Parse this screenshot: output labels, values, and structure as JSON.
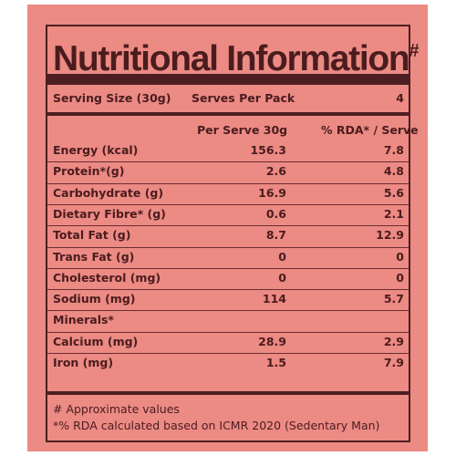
{
  "title": "Nutritional Information",
  "title_mark": "#",
  "serving": {
    "size_label": "Serving Size (30g)",
    "per_pack_label": "Serves Per Pack",
    "per_pack_value": "4"
  },
  "headers": {
    "per_serve": "Per Serve 30g",
    "rda": "% RDA* / Serve"
  },
  "rows": [
    {
      "label": "Energy (kcal)",
      "per_serve": "156.3",
      "rda": "7.8"
    },
    {
      "label": "Protein*(g)",
      "per_serve": "2.6",
      "rda": "4.8"
    },
    {
      "label": "Carbohydrate (g)",
      "per_serve": "16.9",
      "rda": "5.6"
    },
    {
      "label": "Dietary Fibre* (g)",
      "per_serve": "0.6",
      "rda": "2.1"
    },
    {
      "label": "Total Fat (g)",
      "per_serve": "8.7",
      "rda": "12.9"
    },
    {
      "label": "Trans Fat (g)",
      "per_serve": "0",
      "rda": "0"
    },
    {
      "label": "Cholesterol (mg)",
      "per_serve": "0",
      "rda": "0"
    },
    {
      "label": "Sodium (mg)",
      "per_serve": "114",
      "rda": "5.7"
    },
    {
      "label": "Minerals*",
      "per_serve": "",
      "rda": ""
    },
    {
      "label": "Calcium (mg)",
      "per_serve": "28.9",
      "rda": "2.9"
    },
    {
      "label": "Iron (mg)",
      "per_serve": "1.5",
      "rda": "7.9"
    }
  ],
  "footnotes": [
    "# Approximate values",
    "*% RDA calculated based on ICMR 2020 (Sedentary Man)"
  ],
  "colors": {
    "panel": "#ec8a84",
    "ink": "#4a1c1e"
  }
}
